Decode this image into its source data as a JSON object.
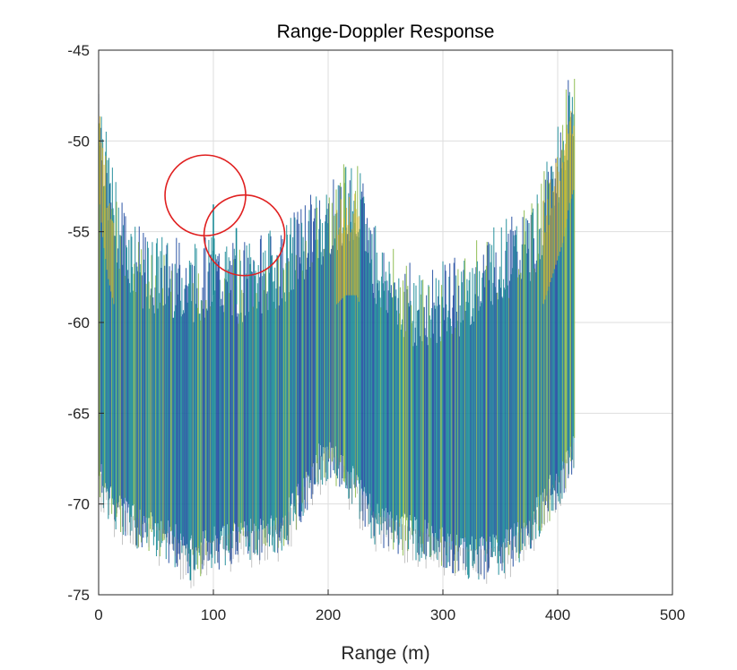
{
  "chart_data": {
    "type": "area",
    "title": "Range-Doppler Response",
    "xlabel": "Range (m)",
    "ylabel": "",
    "xlim": [
      0,
      500
    ],
    "ylim": [
      -75,
      -45
    ],
    "xticks": [
      0,
      100,
      200,
      300,
      400,
      500
    ],
    "yticks": [
      -45,
      -50,
      -55,
      -60,
      -65,
      -70,
      -75
    ],
    "grid": true,
    "upper_envelope": {
      "x": [
        0,
        3,
        8,
        15,
        25,
        40,
        60,
        80,
        100,
        120,
        140,
        160,
        180,
        200,
        215,
        225,
        235,
        245,
        260,
        280,
        300,
        320,
        340,
        360,
        380,
        395,
        405,
        410,
        415
      ],
      "y": [
        -48.5,
        -51,
        -53.5,
        -55.5,
        -57,
        -58.5,
        -58.5,
        -59,
        -58.5,
        -59,
        -58.5,
        -58,
        -56.5,
        -55.5,
        -54.5,
        -54.5,
        -56.5,
        -58.5,
        -59.5,
        -60.5,
        -60,
        -59.5,
        -58,
        -57.5,
        -56.5,
        -53.5,
        -51.5,
        -49.5,
        -48.5
      ]
    },
    "lower_envelope": {
      "x": [
        0,
        10,
        25,
        40,
        60,
        80,
        100,
        120,
        140,
        160,
        180,
        190,
        200,
        210,
        220,
        240,
        260,
        280,
        300,
        320,
        340,
        360,
        380,
        400,
        415
      ],
      "y": [
        -68,
        -69.5,
        -70.5,
        -71,
        -71.5,
        -72.5,
        -72,
        -71.5,
        -71.5,
        -71,
        -69,
        -67.5,
        -67,
        -67.5,
        -68.5,
        -70.5,
        -71,
        -71.5,
        -72,
        -72.5,
        -72.5,
        -72,
        -70.5,
        -68.5,
        -66.5
      ]
    },
    "peaks": [
      {
        "x": 80,
        "y": -74.2
      },
      {
        "x": 100,
        "y": -53.5
      },
      {
        "x": 120,
        "y": -54.8
      }
    ],
    "annotations": [
      {
        "type": "circle",
        "cx": 93,
        "cy": -53
      },
      {
        "type": "circle",
        "cx": 127,
        "cy": -55.2
      }
    ],
    "colors": {
      "low": "#1f4aa0",
      "mid": "#1a8a96",
      "high": "#8aba4a",
      "peak": "#e6b422",
      "annotation": "#e02020",
      "grid": "#dedede",
      "edge": "#888888"
    }
  }
}
